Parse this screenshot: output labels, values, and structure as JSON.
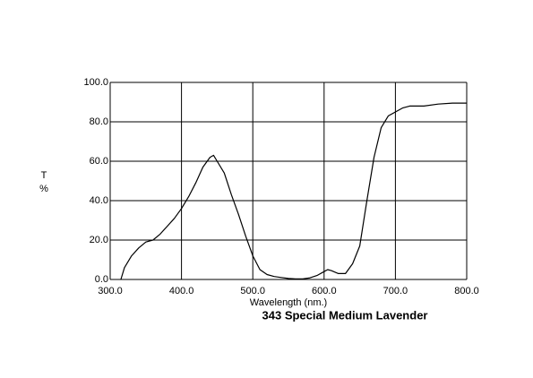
{
  "chart_data": {
    "type": "line",
    "title": "343 Special Medium Lavender",
    "xlabel": "Wavelength (nm.)",
    "ylabel": [
      "T",
      "%"
    ],
    "grid": true,
    "xlim": [
      300,
      800
    ],
    "ylim": [
      0,
      100
    ],
    "xticks": [
      {
        "value": 300,
        "label": "300.0"
      },
      {
        "value": 400,
        "label": "400.0"
      },
      {
        "value": 500,
        "label": "500.0"
      },
      {
        "value": 600,
        "label": "600.0"
      },
      {
        "value": 700,
        "label": "700.0"
      },
      {
        "value": 800,
        "label": "800.0"
      }
    ],
    "yticks": [
      {
        "value": 0,
        "label": "0.0"
      },
      {
        "value": 20,
        "label": "20.0"
      },
      {
        "value": 40,
        "label": "40.0"
      },
      {
        "value": 60,
        "label": "60.0"
      },
      {
        "value": 80,
        "label": "80.0"
      },
      {
        "value": 100,
        "label": "100.0"
      }
    ],
    "x": [
      315,
      320,
      330,
      340,
      350,
      360,
      370,
      380,
      390,
      400,
      410,
      420,
      430,
      440,
      445,
      450,
      460,
      470,
      480,
      490,
      500,
      510,
      520,
      530,
      540,
      550,
      560,
      570,
      580,
      590,
      600,
      605,
      610,
      620,
      630,
      640,
      650,
      660,
      670,
      680,
      690,
      700,
      710,
      720,
      740,
      760,
      780,
      800
    ],
    "series": [
      {
        "color": "#000000",
        "values": [
          0,
          6,
          12,
          16,
          19,
          20,
          23,
          27,
          31,
          36,
          42,
          49,
          57,
          62,
          63,
          60,
          54,
          43,
          33,
          22,
          12,
          5,
          2.5,
          1.5,
          1,
          0.5,
          0.3,
          0.3,
          0.8,
          2,
          4,
          5,
          4.5,
          3,
          3,
          8,
          17,
          40,
          62,
          77,
          83,
          85,
          87,
          88,
          88,
          89,
          89.5,
          89.5
        ]
      }
    ]
  }
}
